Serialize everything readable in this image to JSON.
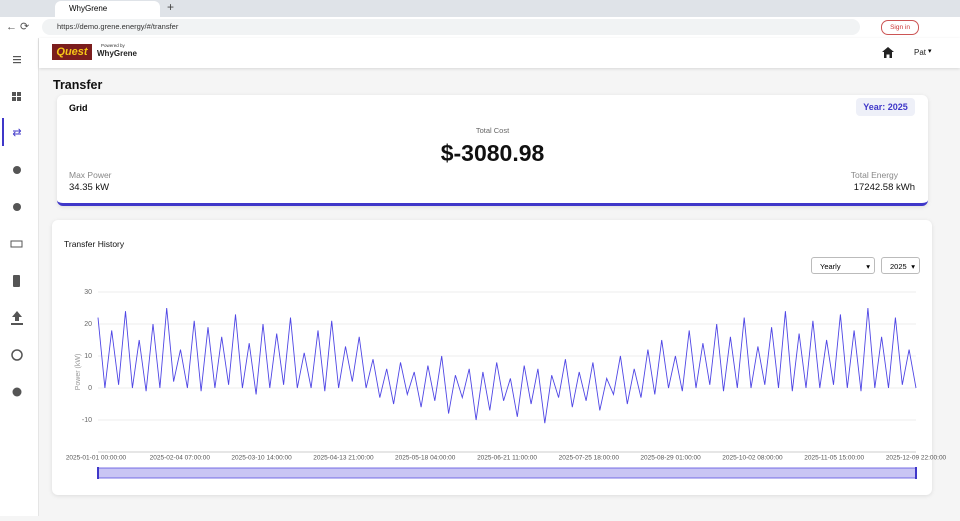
{
  "browser": {
    "tab_title": "WhyGrene",
    "url": "https://demo.grene.energy/#/transfer",
    "sign_in": "Sign in"
  },
  "header": {
    "logo_quest": "Quest",
    "logo_powered": "Powered by",
    "logo_brand": "WhyGrene",
    "user": "Pat"
  },
  "page_title": "Transfer",
  "grid_card": {
    "label": "Grid",
    "year": "Year: 2025",
    "total_cost_label": "Total Cost",
    "total_cost": "$-3080.98",
    "max_power_label": "Max Power",
    "max_power": "34.35 kW",
    "total_energy_label": "Total Energy",
    "total_energy": "17242.58 kWh"
  },
  "history": {
    "title": "Transfer History",
    "period": "Yearly",
    "year": "2025"
  },
  "chart_data": {
    "type": "line",
    "y_label": "Power (kW)",
    "color": "#4f46e5",
    "ylim": [
      -20,
      30
    ],
    "yticks": [
      -10,
      0,
      10,
      20,
      30
    ],
    "grid": true,
    "xtick_labels": [
      "2025-01-01 00:00:00",
      "2025-02-04 07:00:00",
      "2025-03-10 14:00:00",
      "2025-04-13 21:00:00",
      "2025-05-18 04:00:00",
      "2025-06-21 11:00:00",
      "2025-07-25 18:00:00",
      "2025-08-29 01:00:00",
      "2025-10-02 08:00:00",
      "2025-11-05 15:00:00",
      "2025-12-09 22:00:00"
    ],
    "values": [
      22,
      0,
      18,
      1,
      24,
      0,
      15,
      -1,
      20,
      0,
      25,
      2,
      12,
      0,
      21,
      -1,
      19,
      0,
      16,
      1,
      23,
      0,
      14,
      -2,
      20,
      0,
      17,
      1,
      22,
      0,
      11,
      0,
      18,
      -1,
      21,
      0,
      13,
      2,
      16,
      0,
      9,
      -3,
      6,
      -5,
      8,
      -2,
      5,
      -6,
      7,
      -4,
      10,
      -8,
      4,
      -3,
      6,
      -10,
      5,
      -7,
      8,
      -4,
      3,
      -9,
      7,
      -5,
      6,
      -11,
      4,
      -3,
      9,
      -6,
      5,
      -4,
      8,
      -7,
      3,
      -2,
      10,
      -5,
      6,
      -3,
      12,
      -2,
      15,
      0,
      10,
      -1,
      18,
      0,
      14,
      1,
      20,
      -1,
      16,
      0,
      22,
      0,
      13,
      1,
      19,
      0,
      24,
      -1,
      17,
      0,
      21,
      0,
      15,
      1,
      23,
      0,
      18,
      -1,
      25,
      0,
      16,
      0,
      22,
      1,
      12,
      0
    ]
  }
}
